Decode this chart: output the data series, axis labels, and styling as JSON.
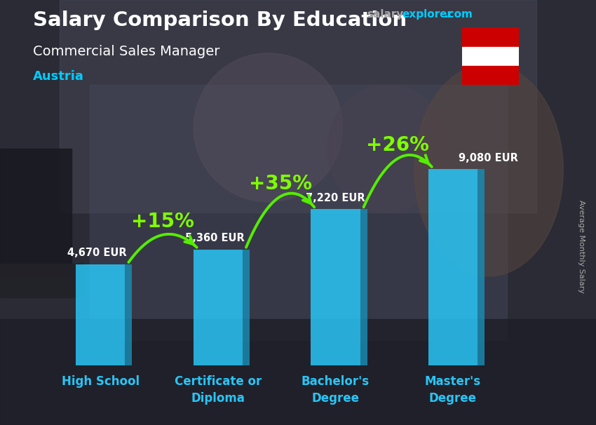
{
  "title": "Salary Comparison By Education",
  "subtitle": "Commercial Sales Manager",
  "country": "Austria",
  "categories": [
    "High School",
    "Certificate or\nDiploma",
    "Bachelor's\nDegree",
    "Master's\nDegree"
  ],
  "values": [
    4670,
    5360,
    7220,
    9080
  ],
  "value_labels": [
    "4,670 EUR",
    "5,360 EUR",
    "7,220 EUR",
    "9,080 EUR"
  ],
  "pct_labels": [
    "+15%",
    "+35%",
    "+26%"
  ],
  "bar_color": "#29c5f6",
  "bar_edge_color": "#1a9bbf",
  "bar_alpha": 0.85,
  "bg_color": "#3a3a4a",
  "title_color": "#ffffff",
  "subtitle_color": "#ffffff",
  "country_color": "#00ccff",
  "value_label_color": "#ffffff",
  "pct_color": "#7fff00",
  "arrow_color": "#55ee00",
  "site_salary_color": "#aaaaaa",
  "site_explorer_color": "#00ccff",
  "site_com_color": "#00ccff",
  "ylabel_color": "#aaaaaa",
  "ylabel": "Average Monthly Salary",
  "xtick_color": "#29c5f6",
  "figsize": [
    8.5,
    6.06
  ],
  "dpi": 100,
  "ylim_max": 11000,
  "bar_width": 0.42
}
